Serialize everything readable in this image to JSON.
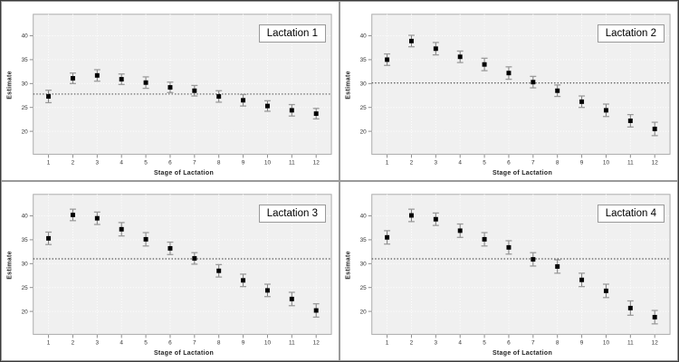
{
  "figure": {
    "description": "2x2 panel of estimate-by-stage scatter plots with error bars",
    "colors": {
      "plot_bg": "#f0f0f0",
      "grid": "#ffffff",
      "frame": "#ababab",
      "tick": "#8a8a8a",
      "tick_label": "#333333",
      "marker": "#000000",
      "whisker": "#7a7a7a",
      "cap": "#9a9a9a",
      "ref_line": "#333333"
    }
  },
  "chart_data": [
    {
      "type": "scatter",
      "title": "Lactation 1",
      "xlabel": "Stage of Lactation",
      "ylabel": "Estimate",
      "categories": [
        "1",
        "2",
        "3",
        "4",
        "5",
        "6",
        "7",
        "8",
        "9",
        "10",
        "11",
        "12"
      ],
      "values": [
        27.3,
        31.1,
        31.7,
        30.9,
        30.2,
        29.2,
        28.5,
        27.3,
        26.5,
        25.3,
        24.4,
        23.7
      ],
      "errors": [
        1.3,
        1.1,
        1.2,
        1.1,
        1.2,
        1.1,
        1.1,
        1.2,
        1.2,
        1.1,
        1.2,
        1.1
      ],
      "ref_line": 27.8,
      "yticks": [
        20,
        25,
        30,
        35,
        40
      ],
      "ylim": [
        15.2,
        44.5
      ],
      "grid": true,
      "legend_position": "top-right-inset",
      "marker": "filled-square-with-error-bars"
    },
    {
      "type": "scatter",
      "title": "Lactation 2",
      "xlabel": "Stage of Lactation",
      "ylabel": "Estimate",
      "categories": [
        "1",
        "2",
        "3",
        "4",
        "5",
        "6",
        "7",
        "8",
        "9",
        "10",
        "11",
        "12"
      ],
      "values": [
        35.0,
        38.9,
        37.3,
        35.6,
        34.0,
        32.2,
        30.3,
        28.5,
        26.2,
        24.4,
        22.2,
        20.5
      ],
      "errors": [
        1.2,
        1.2,
        1.3,
        1.2,
        1.3,
        1.3,
        1.2,
        1.2,
        1.2,
        1.3,
        1.3,
        1.4
      ],
      "ref_line": 30.1,
      "yticks": [
        20,
        25,
        30,
        35,
        40
      ],
      "ylim": [
        15.2,
        44.5
      ],
      "grid": true,
      "legend_position": "top-right-inset",
      "marker": "filled-square-with-error-bars"
    },
    {
      "type": "scatter",
      "title": "Lactation 3",
      "xlabel": "Stage of Lactation",
      "ylabel": "Estimate",
      "categories": [
        "1",
        "2",
        "3",
        "4",
        "5",
        "6",
        "7",
        "8",
        "9",
        "10",
        "11",
        "12"
      ],
      "values": [
        35.3,
        40.2,
        39.5,
        37.2,
        35.1,
        33.2,
        31.1,
        28.5,
        26.5,
        24.4,
        22.6,
        20.2
      ],
      "errors": [
        1.3,
        1.2,
        1.3,
        1.4,
        1.4,
        1.3,
        1.2,
        1.3,
        1.3,
        1.3,
        1.4,
        1.4
      ],
      "ref_line": 31.0,
      "yticks": [
        20,
        25,
        30,
        35,
        40
      ],
      "ylim": [
        15.2,
        44.5
      ],
      "grid": true,
      "legend_position": "top-right-inset",
      "marker": "filled-square-with-error-bars"
    },
    {
      "type": "scatter",
      "title": "Lactation 4",
      "xlabel": "Stage of Lactation",
      "ylabel": "Estimate",
      "categories": [
        "1",
        "2",
        "3",
        "4",
        "5",
        "6",
        "7",
        "8",
        "9",
        "10",
        "11",
        "12"
      ],
      "values": [
        35.5,
        40.1,
        39.3,
        36.9,
        35.1,
        33.4,
        30.9,
        29.4,
        26.6,
        24.3,
        20.7,
        18.8
      ],
      "errors": [
        1.4,
        1.3,
        1.3,
        1.4,
        1.4,
        1.4,
        1.4,
        1.4,
        1.4,
        1.4,
        1.5,
        1.4
      ],
      "ref_line": 31.0,
      "yticks": [
        20,
        25,
        30,
        35,
        40
      ],
      "ylim": [
        15.2,
        44.5
      ],
      "grid": true,
      "legend_position": "top-right-inset",
      "marker": "filled-square-with-error-bars"
    }
  ]
}
